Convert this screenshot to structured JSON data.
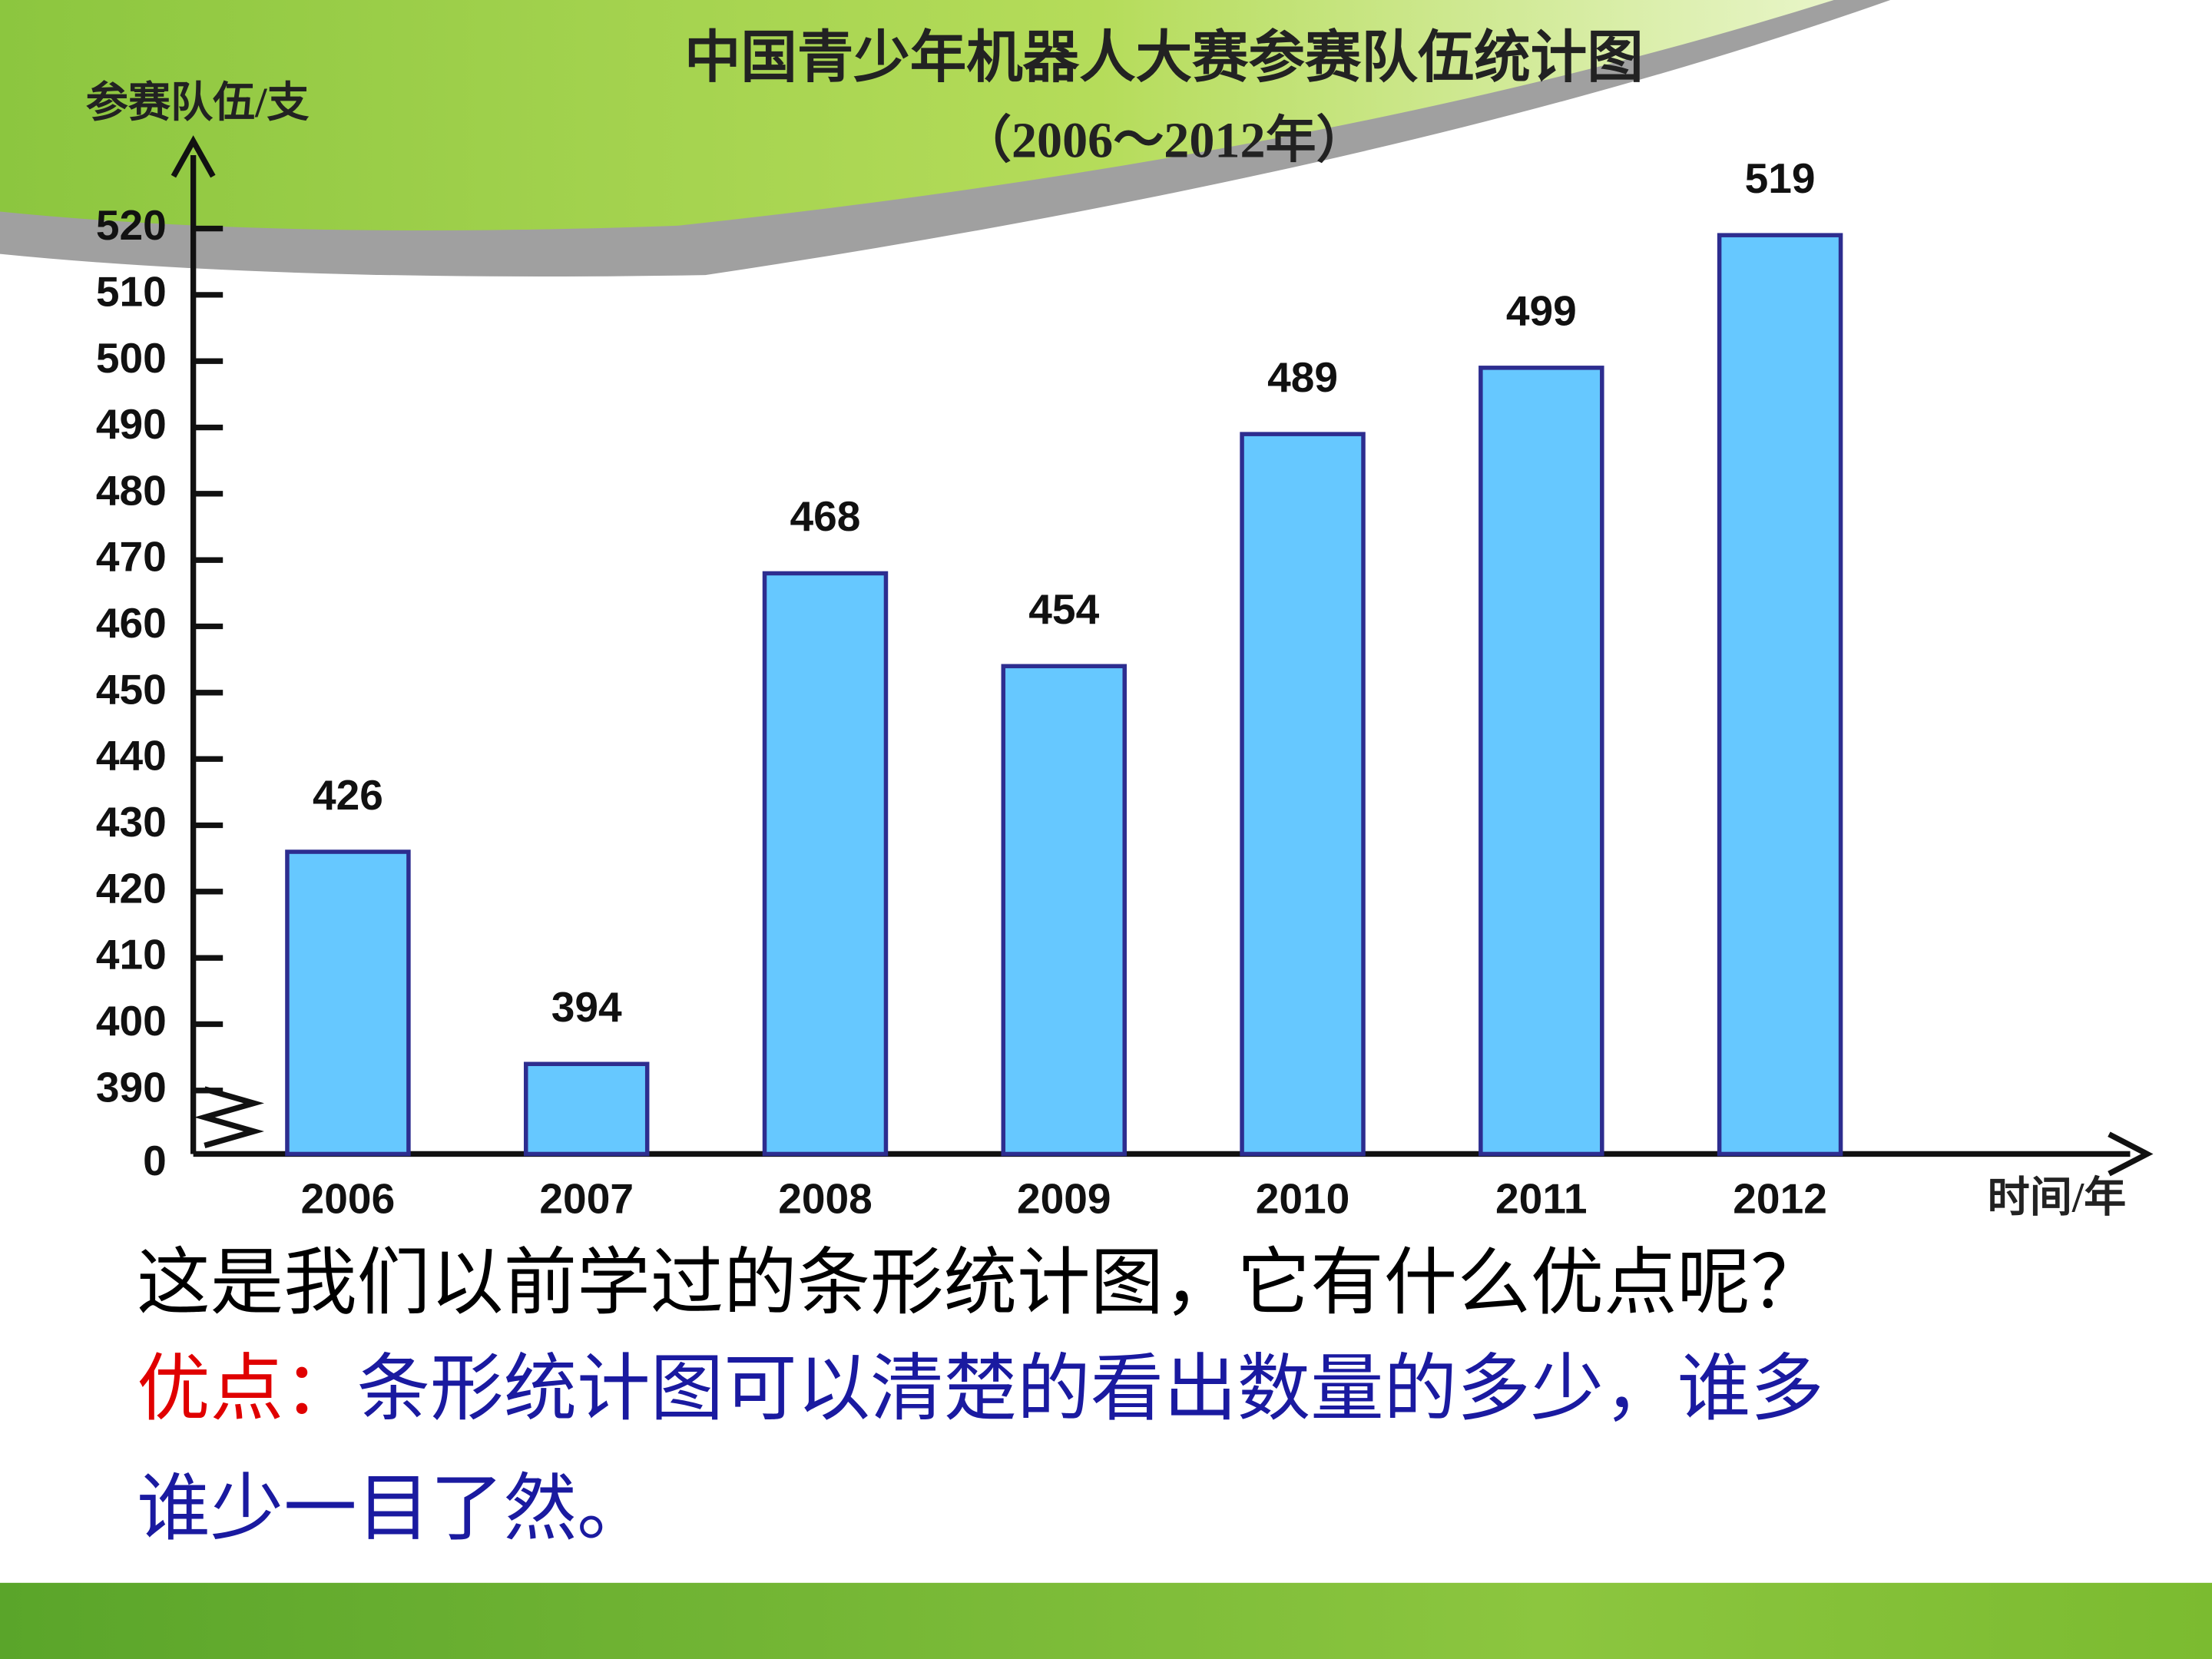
{
  "chart_data": {
    "type": "bar",
    "title": "中国青少年机器人大赛参赛队伍统计图",
    "subtitle": "（2006～2012年）",
    "y_label": "参赛队伍/支",
    "x_label": "时间/年",
    "categories": [
      "2006",
      "2007",
      "2008",
      "2009",
      "2010",
      "2011",
      "2012"
    ],
    "values": [
      426,
      394,
      468,
      454,
      489,
      499,
      519
    ],
    "color": "#66c8ff",
    "ylim": [
      0,
      520
    ],
    "yticks": [
      0,
      390,
      400,
      410,
      420,
      430,
      440,
      450,
      460,
      470,
      480,
      490,
      500,
      510,
      520
    ],
    "axis_break": true,
    "grid": false
  },
  "text": {
    "question": "这是我们以前学过的条形统计图，它有什么优点呢？",
    "advantage_label": "优点：",
    "advantage_lines": [
      "条形统计图可以清楚的看出数量的多少，谁多",
      "谁少一目了然。"
    ]
  }
}
